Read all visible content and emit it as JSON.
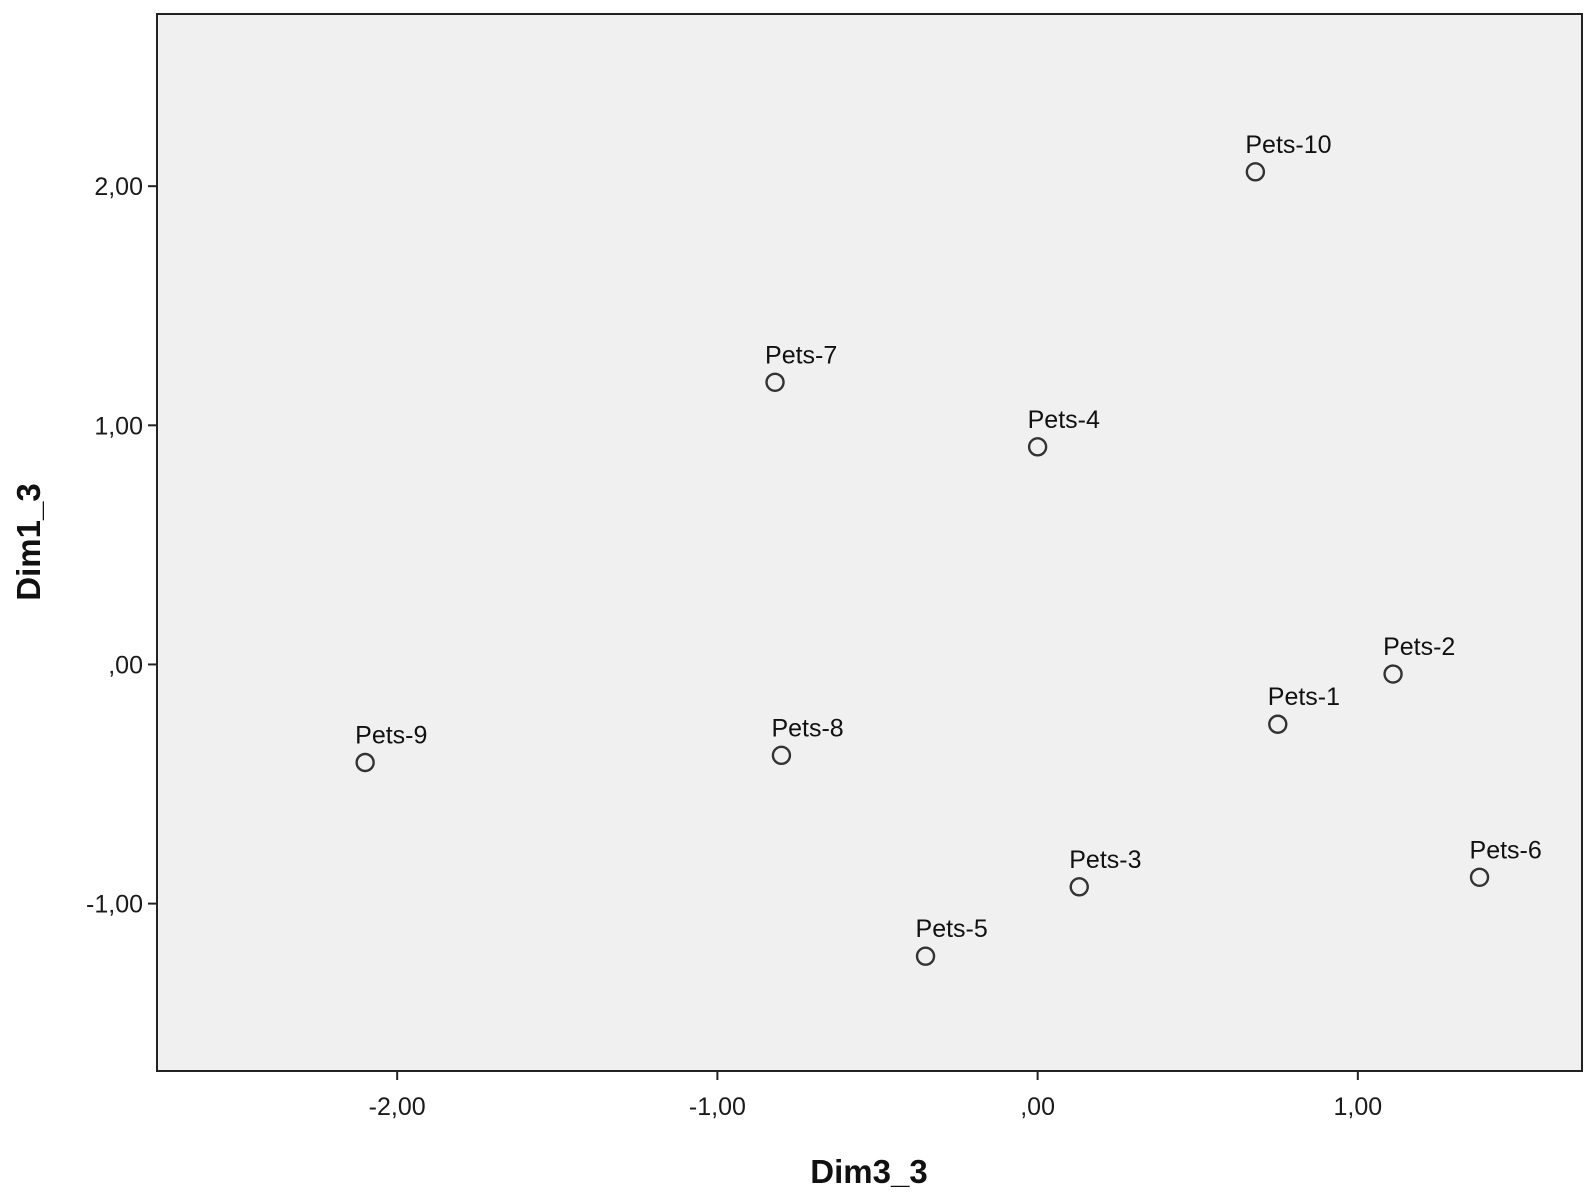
{
  "chart_data": {
    "type": "scatter",
    "title": "",
    "xlabel": "Dim3_3",
    "ylabel": "Dim1_3",
    "xlim": [
      -2.75,
      1.7
    ],
    "ylim": [
      -1.7,
      2.72
    ],
    "x_ticks": [
      {
        "value": -2.0,
        "label": "-2,00"
      },
      {
        "value": -1.0,
        "label": "-1,00"
      },
      {
        "value": 0.0,
        "label": ",00"
      },
      {
        "value": 1.0,
        "label": "1,00"
      }
    ],
    "y_ticks": [
      {
        "value": 2.0,
        "label": "2,00"
      },
      {
        "value": 1.0,
        "label": "1,00"
      },
      {
        "value": 0.0,
        "label": ",00"
      },
      {
        "value": -1.0,
        "label": "-1,00"
      }
    ],
    "grid": false,
    "legend": "none",
    "plot_background": "#f0f0f0",
    "marker_color": "#333333",
    "points": [
      {
        "label": "Pets-1",
        "x": 0.75,
        "y": -0.25
      },
      {
        "label": "Pets-2",
        "x": 1.11,
        "y": -0.04
      },
      {
        "label": "Pets-3",
        "x": 0.13,
        "y": -0.93
      },
      {
        "label": "Pets-4",
        "x": 0.0,
        "y": 0.91
      },
      {
        "label": "Pets-5",
        "x": -0.35,
        "y": -1.22
      },
      {
        "label": "Pets-6",
        "x": 1.38,
        "y": -0.89
      },
      {
        "label": "Pets-7",
        "x": -0.82,
        "y": 1.18
      },
      {
        "label": "Pets-8",
        "x": -0.8,
        "y": -0.38
      },
      {
        "label": "Pets-9",
        "x": -2.1,
        "y": -0.41
      },
      {
        "label": "Pets-10",
        "x": 0.68,
        "y": 2.06
      }
    ]
  }
}
